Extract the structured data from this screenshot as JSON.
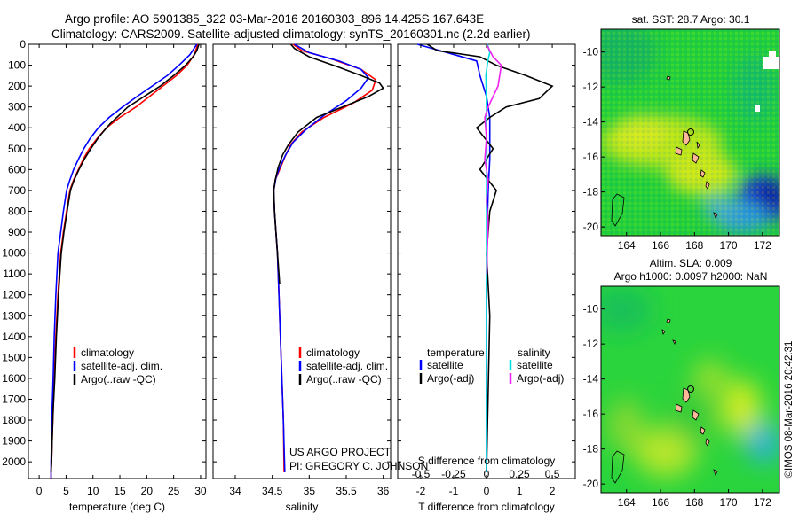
{
  "header": {
    "line1": "Argo profile: AO 5901385_322 03-Mar-2016 20160303_896 14.425S 167.643E",
    "line2": "Climatology: CARS2009. Satellite-adjusted climatology: synTS_20160301.nc (2.2d earlier)"
  },
  "credits": {
    "project": "US ARGO PROJECT",
    "pi": "PI: GREGORY C. JOHNSON",
    "stamp": "©IMOS 08-Mar-2016 20:42:31"
  },
  "colors": {
    "climatology": "#ff0000",
    "satellite": "#0000ff",
    "argo": "#000000",
    "sal_satellite": "#00dddd",
    "sal_argo": "#ee22ee"
  },
  "chart_data": [
    {
      "type": "line",
      "xlabel": "temperature (deg C)",
      "xlim": [
        -2,
        31
      ],
      "xticks": [
        0,
        5,
        10,
        15,
        20,
        25,
        30
      ],
      "ylim": [
        2080,
        0
      ],
      "yticks": [
        0,
        100,
        200,
        300,
        400,
        500,
        600,
        700,
        800,
        900,
        1000,
        1100,
        1200,
        1300,
        1400,
        1500,
        1600,
        1700,
        1800,
        1900,
        2000
      ],
      "grid": false,
      "legend": {
        "position": "bottom-center",
        "entries": [
          "climatology",
          "satellite-adj. clim.",
          "Argo(..raw -QC)"
        ]
      },
      "series": [
        {
          "name": "climatology",
          "color": "#ff0000",
          "x": [
            29.5,
            28.8,
            27.5,
            25.5,
            23.0,
            20.5,
            18.0,
            15.0,
            12.5,
            10.8,
            9.3,
            8.2,
            7.3,
            6.4,
            5.7,
            5.1,
            4.5,
            4.0,
            3.5,
            3.1,
            2.8,
            2.6,
            2.4,
            2.3,
            2.2,
            2.2
          ],
          "y": [
            0,
            50,
            100,
            150,
            200,
            250,
            300,
            350,
            400,
            450,
            500,
            550,
            600,
            650,
            700,
            800,
            900,
            1000,
            1200,
            1400,
            1600,
            1750,
            1900,
            2000,
            2050,
            2080
          ]
        },
        {
          "name": "satellite-adj. clim.",
          "color": "#0000ff",
          "x": [
            29.3,
            28.0,
            26.0,
            23.8,
            21.0,
            18.2,
            15.5,
            13.0,
            11.0,
            9.5,
            8.3,
            7.3,
            6.4,
            5.7,
            5.1,
            4.5,
            4.0,
            3.5,
            3.1,
            2.8,
            2.6,
            2.4,
            2.3,
            2.2,
            2.2
          ],
          "y": [
            0,
            50,
            100,
            150,
            200,
            250,
            300,
            350,
            400,
            450,
            500,
            550,
            600,
            650,
            700,
            800,
            900,
            1000,
            1200,
            1400,
            1600,
            1750,
            1900,
            2000,
            2080
          ]
        },
        {
          "name": "Argo(..raw -QC)",
          "color": "#000000",
          "x": [
            29.7,
            29.3,
            28.6,
            27.2,
            25.0,
            22.5,
            19.5,
            16.5,
            13.2,
            11.2,
            9.6,
            8.4,
            7.4,
            6.5,
            5.8,
            5.2,
            4.6,
            4.1,
            3.6,
            3.2,
            2.9,
            2.6,
            2.4,
            2.3,
            2.2
          ],
          "y": [
            0,
            30,
            60,
            100,
            150,
            200,
            250,
            300,
            380,
            440,
            500,
            550,
            600,
            650,
            700,
            800,
            900,
            1000,
            1200,
            1400,
            1600,
            1750,
            1900,
            2000,
            2050
          ]
        }
      ]
    },
    {
      "type": "line",
      "xlabel": "salinity",
      "xlim": [
        33.7,
        36.1
      ],
      "xticks": [
        34,
        34.5,
        35,
        35.5,
        36
      ],
      "ylim": [
        2080,
        0
      ],
      "grid": false,
      "legend": {
        "position": "bottom-right",
        "entries": [
          "climatology",
          "satellite-adj. clim.",
          "Argo(..raw -QC)"
        ]
      },
      "series": [
        {
          "name": "climatology",
          "color": "#ff0000",
          "x": [
            34.78,
            34.9,
            35.3,
            35.7,
            35.9,
            35.85,
            35.6,
            35.2,
            34.9,
            34.75,
            34.67,
            34.6,
            34.54,
            34.52,
            34.53,
            34.55,
            34.57,
            34.59,
            34.61,
            34.63,
            34.65,
            34.66
          ],
          "y": [
            0,
            30,
            70,
            120,
            170,
            220,
            280,
            350,
            420,
            480,
            540,
            600,
            650,
            700,
            800,
            900,
            1000,
            1200,
            1400,
            1600,
            1800,
            2050
          ]
        },
        {
          "name": "satellite-adj. clim.",
          "color": "#0000ff",
          "x": [
            34.8,
            35.0,
            35.4,
            35.7,
            35.8,
            35.7,
            35.5,
            35.2,
            34.95,
            34.78,
            34.68,
            34.6,
            34.55,
            34.52,
            34.53,
            34.55,
            34.57,
            34.59,
            34.61,
            34.63,
            34.65,
            34.67
          ],
          "y": [
            0,
            40,
            80,
            120,
            160,
            210,
            270,
            340,
            410,
            470,
            530,
            590,
            640,
            700,
            800,
            900,
            1000,
            1200,
            1400,
            1600,
            1800,
            2050
          ]
        },
        {
          "name": "Argo(..raw -QC)",
          "color": "#000000",
          "x": [
            34.75,
            34.8,
            35.0,
            35.4,
            35.7,
            35.95,
            36.0,
            35.8,
            35.45,
            35.1,
            34.85,
            34.72,
            34.64,
            34.58,
            34.54,
            34.52,
            34.53,
            34.55,
            34.57,
            34.6
          ],
          "y": [
            0,
            20,
            60,
            110,
            150,
            185,
            210,
            250,
            300,
            350,
            420,
            480,
            530,
            590,
            650,
            700,
            800,
            900,
            1000,
            1150
          ]
        }
      ]
    },
    {
      "type": "line",
      "xlabel": "T difference from climatology",
      "xlabel_top": "S difference from climatology",
      "xlim": [
        -2.7,
        2.7
      ],
      "xticks": [
        -2,
        -1,
        0,
        1,
        2
      ],
      "xlim_top": [
        -0.675,
        0.675
      ],
      "xticks_top": [
        -0.5,
        -0.25,
        0,
        0.25,
        0.5
      ],
      "xtick_labels_top": [
        "-0.5",
        "-0.25",
        "0",
        "0.25",
        "0.5"
      ],
      "ylim": [
        2080,
        0
      ],
      "grid": false,
      "legend": {
        "position": "bottom-center",
        "temperature_title": "temperature",
        "salinity_title": "salinity",
        "temperature_entries": [
          "satellite",
          "Argo(-adj)"
        ],
        "salinity_entries": [
          "satellite",
          "Argo(-adj)"
        ]
      },
      "series": [
        {
          "name": "temperature satellite",
          "color": "#0000ff",
          "x": [
            -2.1,
            -1.2,
            -0.3,
            -0.2,
            0.0,
            0.1,
            0.1,
            0.1,
            0.05,
            0.02,
            0.0,
            0.0
          ],
          "y": [
            0,
            40,
            80,
            150,
            250,
            350,
            450,
            550,
            700,
            900,
            1200,
            2050
          ]
        },
        {
          "name": "temperature Argo(-adj)",
          "color": "#000000",
          "x": [
            -1.8,
            -1.5,
            -0.2,
            0.3,
            1.2,
            2.0,
            1.6,
            0.6,
            0.1,
            -0.3,
            0.2,
            -0.2,
            0.3,
            0.1,
            0.0,
            0.1,
            0.0
          ],
          "y": [
            0,
            30,
            60,
            100,
            150,
            200,
            260,
            300,
            350,
            400,
            500,
            600,
            700,
            800,
            1000,
            1300,
            2050
          ]
        },
        {
          "name": "salinity satellite",
          "color": "#00dddd",
          "x": [
            0.03,
            0.1,
            0.04,
            -0.02,
            0.0,
            0.01,
            0.0,
            0.0,
            0.0,
            0.0
          ],
          "y": [
            0,
            40,
            80,
            150,
            300,
            500,
            700,
            900,
            1200,
            2050
          ]
        },
        {
          "name": "salinity Argo(-adj)",
          "color": "#ee22ee",
          "x": [
            0.0,
            0.1,
            0.2,
            0.45,
            0.35,
            0.05,
            -0.05,
            0.0,
            -0.05,
            0.05,
            0.0,
            0.05,
            0.02,
            0.01
          ],
          "y": [
            0,
            30,
            60,
            100,
            200,
            300,
            350,
            450,
            550,
            650,
            750,
            850,
            1000,
            1100
          ]
        }
      ]
    },
    {
      "type": "heatmap",
      "title": "sat. SST: 28.7  Argo: 30.1",
      "xlim": [
        162.5,
        173
      ],
      "xticks": [
        164,
        166,
        168,
        170,
        172
      ],
      "ylim": [
        -20.5,
        -8.7
      ],
      "yticks": [
        -10,
        -12,
        -14,
        -16,
        -18,
        -20
      ]
    },
    {
      "type": "heatmap",
      "title": "Altim. SLA: 0.009",
      "subtitle": "Argo h1000: 0.0097  h2000: NaN",
      "xlim": [
        162.5,
        173
      ],
      "xticks": [
        164,
        166,
        168,
        170,
        172
      ],
      "ylim": [
        -20.5,
        -8.7
      ],
      "yticks": [
        -10,
        -12,
        -14,
        -16,
        -18,
        -20
      ]
    }
  ]
}
